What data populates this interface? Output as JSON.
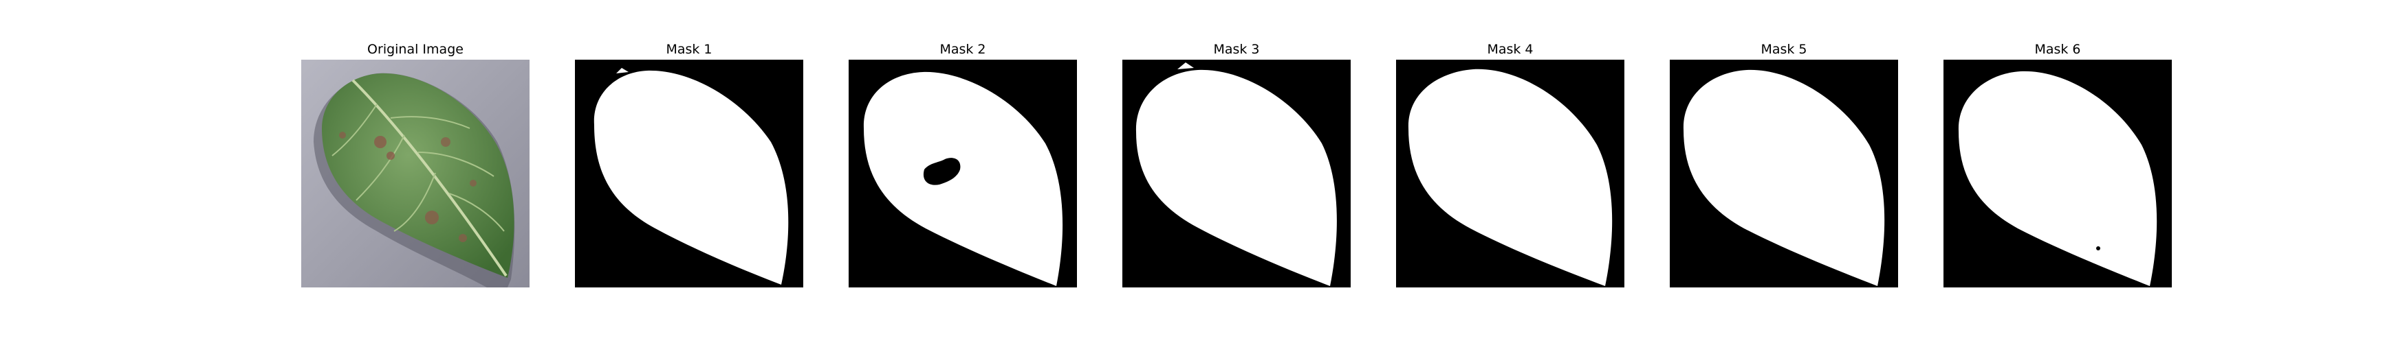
{
  "figure": {
    "panels": [
      {
        "title": "Original Image",
        "kind": "photo",
        "depicts": "leaf-photo"
      },
      {
        "title": "Mask 1",
        "kind": "mask",
        "variant": 1
      },
      {
        "title": "Mask 2",
        "kind": "mask",
        "variant": 2
      },
      {
        "title": "Mask 3",
        "kind": "mask",
        "variant": 3
      },
      {
        "title": "Mask 4",
        "kind": "mask",
        "variant": 4
      },
      {
        "title": "Mask 5",
        "kind": "mask",
        "variant": 5
      },
      {
        "title": "Mask 6",
        "kind": "mask",
        "variant": 6
      }
    ],
    "colors": {
      "background": "#ffffff",
      "mask_background": "#000000",
      "mask_foreground": "#ffffff",
      "leaf_green": "#5f8f4e",
      "leaf_dark": "#3f6b32",
      "surface_gray": "#9a9aa6",
      "disease_spot": "#8b5a4a"
    }
  }
}
